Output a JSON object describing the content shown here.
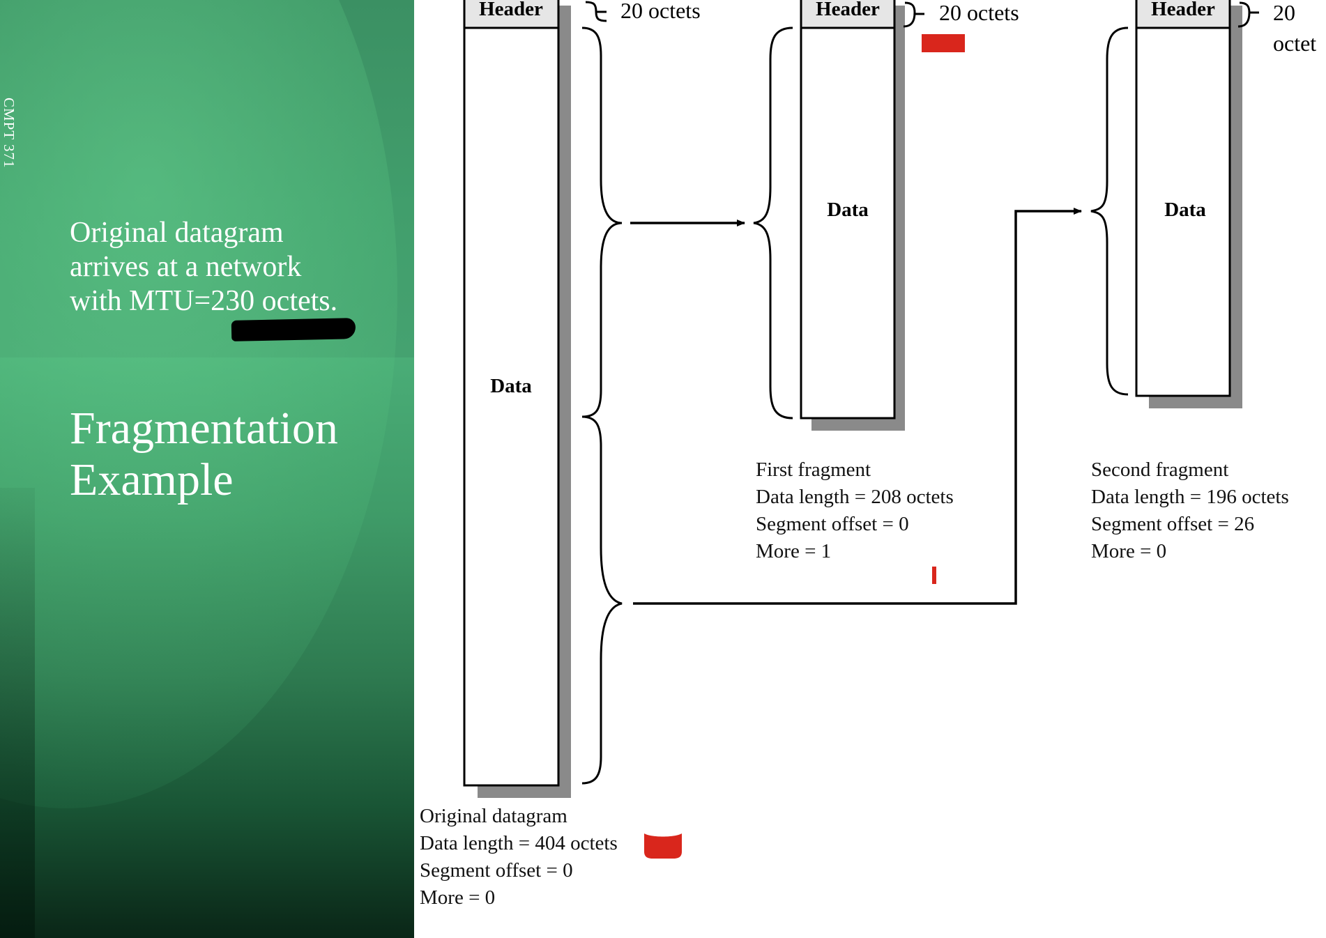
{
  "slide": {
    "course": "CMPT 371",
    "subtitle_lines": [
      "Original datagram",
      "arrives at a network",
      "with MTU=230 octets."
    ],
    "title_lines": [
      "Fragmentation",
      "Example"
    ]
  },
  "diagram": {
    "header_label": "Header",
    "data_label": "Data",
    "original": {
      "header_size": "20 octets",
      "caption": [
        "Original datagram",
        "Data length = 404 octets",
        "Segment offset = 0",
        "More = 0"
      ]
    },
    "first_fragment": {
      "header_size": "20 octets",
      "caption": [
        "First fragment",
        "Data length = 208 octets",
        "Segment offset = 0",
        "More = 1"
      ]
    },
    "second_fragment": {
      "header_size_lines": [
        "20",
        "octet"
      ],
      "caption": [
        "Second fragment",
        "Data length = 196 octets",
        "Segment offset = 26",
        "More = 0"
      ]
    }
  },
  "colors": {
    "slide_green": "#4aad77",
    "annotation_red": "#d9261c",
    "annotation_black": "#000000"
  }
}
